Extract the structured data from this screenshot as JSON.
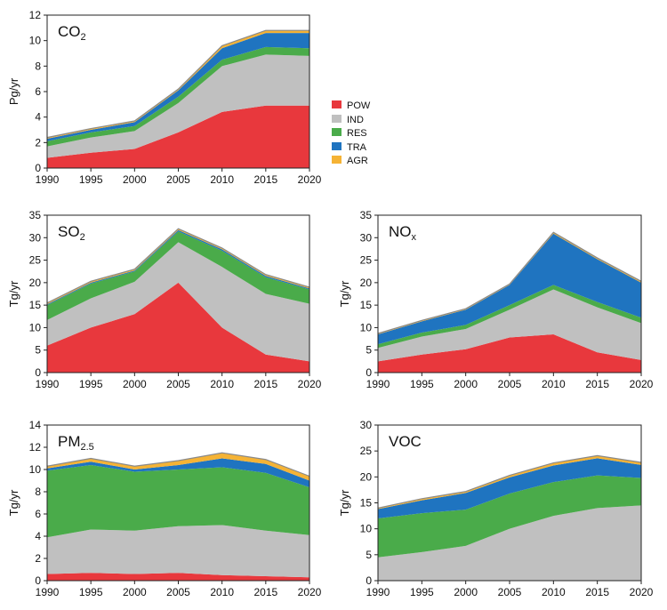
{
  "legend": {
    "entries": [
      {
        "key": "POW",
        "label": "POW",
        "color": "#e8383d"
      },
      {
        "key": "IND",
        "label": "IND",
        "color": "#c0c0c0"
      },
      {
        "key": "RES",
        "label": "RES",
        "color": "#4aab4a"
      },
      {
        "key": "TRA",
        "label": "TRA",
        "color": "#1f74c0"
      },
      {
        "key": "AGR",
        "label": "AGR",
        "color": "#f5b335"
      }
    ]
  },
  "chart_data": [
    {
      "id": "co2",
      "type": "area",
      "stacked": true,
      "title": "CO",
      "title_sub": "2",
      "title_sub_style": "subscript",
      "ylabel": "Pg/yr",
      "xlabel": "",
      "x": [
        1990,
        1995,
        2000,
        2005,
        2010,
        2015,
        2020
      ],
      "xlim": [
        1990,
        2020
      ],
      "ylim": [
        0,
        12
      ],
      "yticks": [
        0,
        2,
        4,
        6,
        8,
        10,
        12
      ],
      "series": [
        {
          "name": "POW",
          "values": [
            0.8,
            1.2,
            1.5,
            2.8,
            4.4,
            4.9,
            4.9
          ]
        },
        {
          "name": "IND",
          "values": [
            0.9,
            1.2,
            1.4,
            2.3,
            3.6,
            4.0,
            3.9
          ]
        },
        {
          "name": "RES",
          "values": [
            0.4,
            0.4,
            0.4,
            0.5,
            0.5,
            0.6,
            0.6
          ]
        },
        {
          "name": "TRA",
          "values": [
            0.2,
            0.2,
            0.3,
            0.5,
            0.9,
            1.1,
            1.2
          ]
        },
        {
          "name": "AGR",
          "values": [
            0.1,
            0.1,
            0.1,
            0.1,
            0.2,
            0.2,
            0.2
          ]
        }
      ]
    },
    {
      "id": "so2",
      "type": "area",
      "stacked": true,
      "title": "SO",
      "title_sub": "2",
      "title_sub_style": "subscript",
      "ylabel": "Tg/yr",
      "xlabel": "",
      "x": [
        1990,
        1995,
        2000,
        2005,
        2010,
        2015,
        2020
      ],
      "xlim": [
        1990,
        2020
      ],
      "ylim": [
        0,
        35
      ],
      "yticks": [
        0,
        5,
        10,
        15,
        20,
        25,
        30,
        35
      ],
      "series": [
        {
          "name": "POW",
          "values": [
            6.0,
            10.0,
            13.0,
            20.0,
            10.0,
            4.0,
            2.5
          ]
        },
        {
          "name": "IND",
          "values": [
            5.7,
            6.5,
            7.2,
            9.0,
            13.5,
            13.5,
            12.8
          ]
        },
        {
          "name": "RES",
          "values": [
            3.3,
            3.3,
            2.3,
            2.4,
            3.6,
            3.7,
            3.2
          ]
        },
        {
          "name": "TRA",
          "values": [
            0.2,
            0.2,
            0.2,
            0.3,
            0.3,
            0.3,
            0.2
          ]
        },
        {
          "name": "AGR",
          "values": [
            0.3,
            0.3,
            0.3,
            0.3,
            0.3,
            0.3,
            0.3
          ]
        }
      ]
    },
    {
      "id": "nox",
      "type": "area",
      "stacked": true,
      "title": "NO",
      "title_sub": "x",
      "title_sub_style": "subscript",
      "ylabel": "Tg/yr",
      "xlabel": "",
      "x": [
        1990,
        1995,
        2000,
        2005,
        2010,
        2015,
        2020
      ],
      "xlim": [
        1990,
        2020
      ],
      "ylim": [
        0,
        35
      ],
      "yticks": [
        0,
        5,
        10,
        15,
        20,
        25,
        30,
        35
      ],
      "series": [
        {
          "name": "POW",
          "values": [
            2.5,
            4.0,
            5.2,
            7.8,
            8.5,
            4.5,
            2.8
          ]
        },
        {
          "name": "IND",
          "values": [
            3.0,
            4.0,
            4.5,
            6.2,
            10.0,
            10.0,
            8.2
          ]
        },
        {
          "name": "RES",
          "values": [
            0.8,
            0.9,
            0.9,
            1.0,
            1.0,
            1.2,
            1.2
          ]
        },
        {
          "name": "TRA",
          "values": [
            2.2,
            2.5,
            3.4,
            4.5,
            11.4,
            9.5,
            7.8
          ]
        },
        {
          "name": "AGR",
          "values": [
            0.2,
            0.2,
            0.2,
            0.2,
            0.3,
            0.3,
            0.3
          ]
        }
      ]
    },
    {
      "id": "pm25",
      "type": "area",
      "stacked": true,
      "title": "PM",
      "title_sub": "2.5",
      "title_sub_style": "subscript",
      "ylabel": "Tg/yr",
      "xlabel": "",
      "x": [
        1990,
        1995,
        2000,
        2005,
        2010,
        2015,
        2020
      ],
      "xlim": [
        1990,
        2020
      ],
      "ylim": [
        0,
        14
      ],
      "yticks": [
        0,
        2,
        4,
        6,
        8,
        10,
        12,
        14
      ],
      "series": [
        {
          "name": "POW",
          "values": [
            0.6,
            0.7,
            0.6,
            0.7,
            0.5,
            0.4,
            0.3
          ]
        },
        {
          "name": "IND",
          "values": [
            3.3,
            3.9,
            3.9,
            4.2,
            4.5,
            4.1,
            3.8
          ]
        },
        {
          "name": "RES",
          "values": [
            6.0,
            5.8,
            5.3,
            5.1,
            5.2,
            5.2,
            4.3
          ]
        },
        {
          "name": "TRA",
          "values": [
            0.2,
            0.3,
            0.2,
            0.4,
            0.8,
            0.8,
            0.6
          ]
        },
        {
          "name": "AGR",
          "values": [
            0.2,
            0.3,
            0.3,
            0.4,
            0.5,
            0.4,
            0.4
          ]
        }
      ]
    },
    {
      "id": "voc",
      "type": "area",
      "stacked": true,
      "title": "VOC",
      "title_sub": "",
      "title_sub_style": "subscript",
      "ylabel": "Tg/yr",
      "xlabel": "",
      "x": [
        1990,
        1995,
        2000,
        2005,
        2010,
        2015,
        2020
      ],
      "xlim": [
        1990,
        2020
      ],
      "ylim": [
        0,
        30
      ],
      "yticks": [
        0,
        5,
        10,
        15,
        20,
        25,
        30
      ],
      "series": [
        {
          "name": "POW",
          "values": [
            0.0,
            0.0,
            0.0,
            0.0,
            0.0,
            0.0,
            0.0
          ]
        },
        {
          "name": "IND",
          "values": [
            4.5,
            5.5,
            6.7,
            10.0,
            12.5,
            14.0,
            14.5
          ]
        },
        {
          "name": "RES",
          "values": [
            7.5,
            7.5,
            7.0,
            6.8,
            6.5,
            6.3,
            5.3
          ]
        },
        {
          "name": "TRA",
          "values": [
            1.8,
            2.5,
            3.2,
            3.1,
            3.2,
            3.3,
            2.5
          ]
        },
        {
          "name": "AGR",
          "values": [
            0.2,
            0.3,
            0.3,
            0.4,
            0.5,
            0.5,
            0.5
          ]
        }
      ]
    }
  ]
}
